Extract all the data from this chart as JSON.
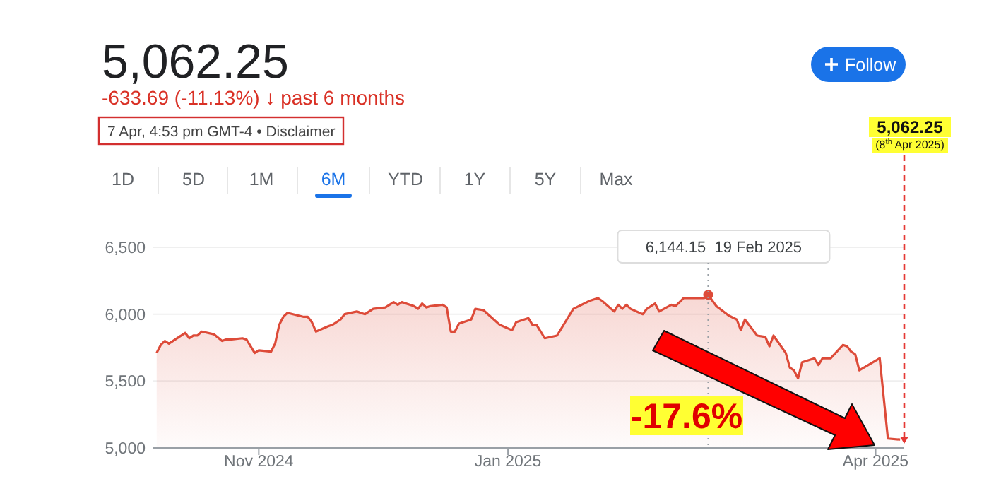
{
  "chart_data": {
    "type": "area",
    "title": "5,062.25",
    "subtitle": "-633.69 (-11.13%) ↓ past 6 months",
    "annotations": [
      "7 Apr, 4:53 pm GMT-4 • Disclaimer",
      "-17.6%",
      {
        "text": "6,144.15  19 Feb 2025",
        "x": "2025-02-19",
        "y": 6144.15
      },
      "1D",
      "5D",
      "1M",
      "6M",
      "YTD",
      "1Y",
      "5Y",
      "Max",
      "Follow"
    ],
    "x": [
      "2024-10-07",
      "2024-10-08",
      "2024-10-09",
      "2024-10-10",
      "2024-10-14",
      "2024-10-15",
      "2024-10-16",
      "2024-10-17",
      "2024-10-18",
      "2024-10-21",
      "2024-10-23",
      "2024-10-24",
      "2024-10-25",
      "2024-10-28",
      "2024-10-29",
      "2024-10-31",
      "2024-11-01",
      "2024-11-04",
      "2024-11-05",
      "2024-11-06",
      "2024-11-07",
      "2024-11-08",
      "2024-11-12",
      "2024-11-13",
      "2024-11-14",
      "2024-11-15",
      "2024-11-18",
      "2024-11-19",
      "2024-11-21",
      "2024-11-22",
      "2024-11-25",
      "2024-11-27",
      "2024-11-29",
      "2024-12-02",
      "2024-12-04",
      "2024-12-05",
      "2024-12-06",
      "2024-12-09",
      "2024-12-10",
      "2024-12-11",
      "2024-12-12",
      "2024-12-13",
      "2024-12-16",
      "2024-12-17",
      "2024-12-18",
      "2024-12-19",
      "2024-12-20",
      "2024-12-23",
      "2024-12-24",
      "2024-12-26",
      "2024-12-30",
      "2025-01-02",
      "2025-01-03",
      "2025-01-06",
      "2025-01-07",
      "2025-01-08",
      "2025-01-10",
      "2025-01-13",
      "2025-01-15",
      "2025-01-17",
      "2025-01-21",
      "2025-01-23",
      "2025-01-24",
      "2025-01-27",
      "2025-01-28",
      "2025-01-29",
      "2025-01-30",
      "2025-01-31",
      "2025-02-03",
      "2025-02-04",
      "2025-02-06",
      "2025-02-07",
      "2025-02-10",
      "2025-02-11",
      "2025-02-13",
      "2025-02-18",
      "2025-02-19",
      "2025-02-21",
      "2025-02-24",
      "2025-02-26",
      "2025-02-27",
      "2025-02-28",
      "2025-03-03",
      "2025-03-05",
      "2025-03-06",
      "2025-03-07",
      "2025-03-10",
      "2025-03-11",
      "2025-03-12",
      "2025-03-13",
      "2025-03-14",
      "2025-03-17",
      "2025-03-18",
      "2025-03-19",
      "2025-03-20",
      "2025-03-21",
      "2025-03-24",
      "2025-03-25",
      "2025-03-26",
      "2025-03-27",
      "2025-03-28",
      "2025-04-02",
      "2025-04-04",
      "2025-04-07"
    ],
    "series": [
      {
        "color": "#dd4b39",
        "values": [
          5710,
          5770,
          5800,
          5780,
          5860,
          5820,
          5840,
          5840,
          5870,
          5850,
          5800,
          5810,
          5810,
          5820,
          5810,
          5710,
          5730,
          5720,
          5780,
          5920,
          5980,
          6010,
          5980,
          5980,
          5940,
          5870,
          5910,
          5920,
          5960,
          6000,
          6020,
          6000,
          6040,
          6050,
          6090,
          6070,
          6090,
          6060,
          6040,
          6080,
          6050,
          6060,
          6070,
          6050,
          5870,
          5870,
          5930,
          5960,
          6040,
          6030,
          5920,
          5880,
          5940,
          5970,
          5920,
          5920,
          5820,
          5840,
          5940,
          6040,
          6100,
          6120,
          6100,
          6020,
          6070,
          6040,
          6070,
          6040,
          6000,
          6040,
          6080,
          6020,
          6070,
          6060,
          6120,
          6120,
          6144.15,
          6060,
          5990,
          5960,
          5880,
          5960,
          5840,
          5830,
          5760,
          5840,
          5710,
          5600,
          5580,
          5520,
          5640,
          5670,
          5620,
          5670,
          5670,
          5670,
          5770,
          5760,
          5720,
          5700,
          5580,
          5670,
          5070,
          5062.25
        ]
      }
    ],
    "xlim": [
      "2024-10-06",
      "2025-04-08"
    ],
    "xticks": [
      {
        "value": "2024-11-01",
        "label": "Nov 2024"
      },
      {
        "value": "2025-01-01",
        "label": "Jan 2025"
      },
      {
        "value": "2025-04-01",
        "label": "Apr 2025"
      }
    ],
    "ylim": [
      5000,
      6500
    ],
    "yticks": [
      {
        "value": 5000,
        "label": "5,000"
      },
      {
        "value": 5500,
        "label": "5,500"
      },
      {
        "value": 6000,
        "label": "6,000"
      },
      {
        "value": 6500,
        "label": "6,500"
      }
    ],
    "grid": "y",
    "marker": "none",
    "line_style": "solid",
    "ref_lines": [
      {
        "axis": "x",
        "value": "2025-04-08",
        "label": "5,062.25\n(8$^{th}$ Apr 2025)",
        "color": "#e53935",
        "line_style": "dashed"
      },
      {
        "axis": "x",
        "value": "2025-02-19",
        "color": "#9aa0a6",
        "line_style": "dotted"
      }
    ]
  }
}
